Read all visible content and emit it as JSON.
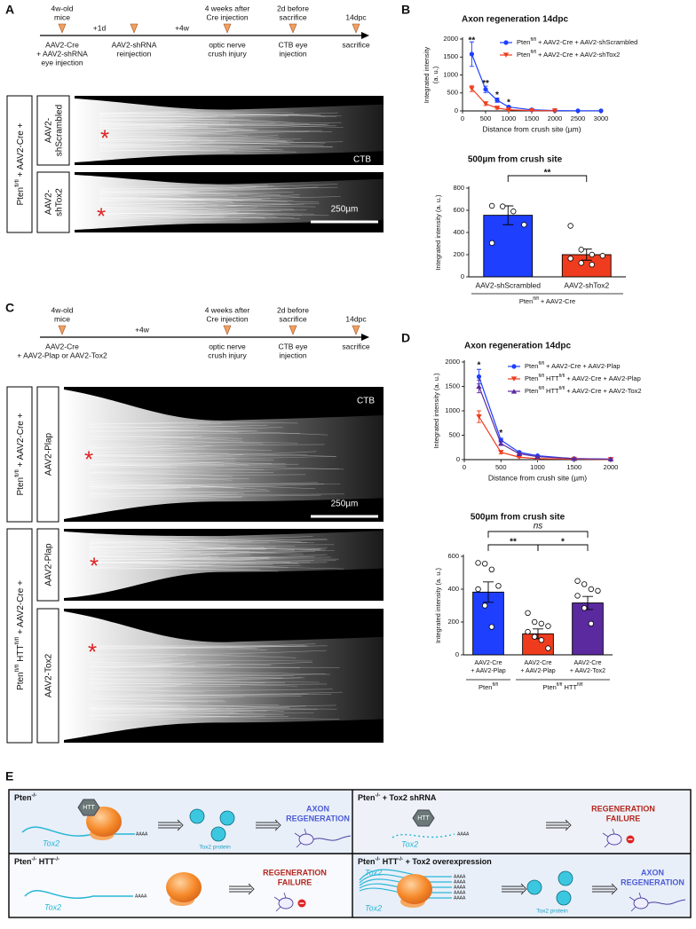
{
  "panels": {
    "a": "A",
    "b": "B",
    "c": "C",
    "d": "D",
    "e": "E"
  },
  "panel_a": {
    "timeline": {
      "markers": [
        {
          "above": [
            "4w-old",
            "mice"
          ],
          "below": [
            "AAV2-Cre",
            "+ AAV2-shRNA",
            "eye injection"
          ]
        },
        {
          "above": null,
          "below": [
            "AAV2-shRNA",
            "reinjection"
          ]
        },
        {
          "above": [
            "4 weeks after",
            "Cre injection"
          ],
          "below": [
            "optic nerve",
            "crush injury"
          ]
        },
        {
          "above": [
            "2d before",
            "sacrifice"
          ],
          "below": [
            "CTB eye",
            "injection"
          ]
        },
        {
          "above": [
            "14dpc"
          ],
          "below": [
            "sacrifice"
          ]
        }
      ],
      "intervals": [
        "+1d",
        "+4w"
      ]
    },
    "row_label": "Ptenfl/fl + AAV2-Cre +",
    "conditions": [
      [
        "AAV2-",
        "shScrambled"
      ],
      [
        "AAV2-",
        "shTox2"
      ]
    ],
    "crush_site_marker": "*",
    "stain": "CTB",
    "scale": "250µm"
  },
  "panel_c": {
    "timeline": {
      "markers": [
        {
          "above": [
            "4w-old",
            "mice"
          ],
          "below": [
            "AAV2-Cre",
            "+ AAV2-Plap or AAV2-Tox2"
          ]
        },
        {
          "above": [
            "4 weeks after",
            "Cre injection"
          ],
          "below": [
            "optic nerve",
            "crush injury"
          ]
        },
        {
          "above": [
            "2d before",
            "sacrifice"
          ],
          "below": [
            "CTB eye",
            "injection"
          ]
        },
        {
          "above": [
            "14dpc"
          ],
          "below": [
            "sacrifice"
          ]
        }
      ],
      "intervals": [
        "+4w"
      ]
    },
    "row_labels": [
      "Ptenfl/fl + AAV2-Cre +",
      "Ptenfl/fl HTTfl/fl + AAV2-Cre +"
    ],
    "conditions": [
      "AAV2-Plap",
      "AAV2-Plap",
      "AAV2-Tox2"
    ],
    "crush_site_marker": "*",
    "stain": "CTB",
    "scale": "250µm"
  },
  "chart_data": [
    {
      "type": "line",
      "title": "Axon regeneration 14dpc",
      "xlabel": "Distance from crush site (µm)",
      "ylabel": [
        "Integrated intensity",
        "(a. u.)"
      ],
      "x": [
        200,
        500,
        750,
        1000,
        1500,
        2000,
        2500,
        3000
      ],
      "xlim": [
        0,
        3000
      ],
      "xticks": [
        0,
        500,
        1000,
        1500,
        2000,
        2500,
        3000
      ],
      "ylim": [
        0,
        2000
      ],
      "yticks": [
        0,
        500,
        1000,
        1500,
        2000
      ],
      "series": [
        {
          "name": "Ptenfl/fl + AAV2-Cre + AAV2-shScrambled",
          "color": "#1f3fff",
          "marker": "circle",
          "values": [
            1580,
            600,
            300,
            110,
            30,
            10,
            5,
            5
          ],
          "errors": [
            340,
            90,
            60,
            30,
            10,
            5,
            5,
            5
          ]
        },
        {
          "name": "Ptenfl/fl + AAV2-Cre + AAV2-shTox2",
          "color": "#f03c1e",
          "marker": "triangle-down",
          "values": [
            620,
            200,
            80,
            30,
            10,
            5,
            null,
            null
          ],
          "errors": [
            80,
            50,
            30,
            15,
            5,
            5,
            null,
            null
          ]
        }
      ],
      "annotations": [
        {
          "x": 200,
          "y": 1960,
          "text": "**"
        },
        {
          "x": 500,
          "y": 760,
          "text": "**"
        },
        {
          "x": 750,
          "y": 440,
          "text": "*"
        },
        {
          "x": 1000,
          "y": 230,
          "text": "*"
        }
      ]
    },
    {
      "type": "bar",
      "title": "500µm from crush site",
      "ylabel": [
        "Integrated intensity (a. u.)"
      ],
      "categories": [
        "AAV2-shScrambled",
        "AAV2-shTox2"
      ],
      "values": [
        555,
        200
      ],
      "errors": [
        85,
        50
      ],
      "points": [
        [
          640,
          635,
          590,
          470,
          305
        ],
        [
          460,
          245,
          200,
          190,
          165,
          125,
          110
        ]
      ],
      "colors": [
        "#1f3fff",
        "#f03c1e"
      ],
      "ylim": [
        0,
        800
      ],
      "yticks": [
        0,
        200,
        400,
        600,
        800
      ],
      "significance": [
        "**"
      ],
      "group_labels": [
        "Ptenfl/fl + AAV2-Cre"
      ]
    },
    {
      "type": "line",
      "title": "Axon regeneration 14dpc",
      "xlabel": "Distance from crush site (µm)",
      "ylabel": [
        "Integrated intensity (a. u.)"
      ],
      "x": [
        200,
        500,
        750,
        1000,
        1500,
        2000
      ],
      "xlim": [
        0,
        2000
      ],
      "xticks": [
        0,
        500,
        1000,
        1500,
        2000
      ],
      "ylim": [
        0,
        2000
      ],
      "yticks": [
        0,
        500,
        1000,
        1500,
        2000
      ],
      "series": [
        {
          "name": "Ptenfl/fl + AAV2-Cre + AAV2-Plap",
          "color": "#1f3fff",
          "marker": "circle",
          "values": [
            1700,
            400,
            150,
            80,
            20,
            10
          ],
          "errors": [
            150,
            40,
            20,
            10,
            5,
            5
          ]
        },
        {
          "name": "Ptenfl/fl HTTfl/fl + AAV2-Cre + AAV2-Plap",
          "color": "#f03c1e",
          "marker": "triangle-down",
          "values": [
            880,
            150,
            50,
            20,
            10,
            5
          ],
          "errors": [
            120,
            30,
            10,
            5,
            5,
            5
          ]
        },
        {
          "name": "Ptenfl/fl HTTfl/fl + AAV2-Cre + AAV2-Tox2",
          "color": "#5b2a9e",
          "marker": "triangle-up",
          "values": [
            1500,
            330,
            120,
            60,
            20,
            10
          ],
          "errors": [
            130,
            40,
            20,
            10,
            5,
            5
          ]
        }
      ],
      "annotations": [
        {
          "x": 200,
          "y": 1930,
          "text": "*"
        },
        {
          "x": 500,
          "y": 540,
          "text": "*"
        }
      ]
    },
    {
      "type": "bar",
      "title": "500µm from crush site",
      "ylabel": [
        "Integrated intensity (a. u.)"
      ],
      "categories": [
        [
          "AAV2-Cre",
          "+ AAV2-Plap"
        ],
        [
          "AAV2-Cre",
          "+ AAV2-Plap"
        ],
        [
          "AAV2-Cre",
          "+ AAV2-Tox2"
        ]
      ],
      "values": [
        382,
        128,
        316
      ],
      "errors": [
        62,
        30,
        40
      ],
      "points": [
        [
          560,
          555,
          520,
          420,
          400,
          300,
          170
        ],
        [
          255,
          200,
          190,
          175,
          140,
          110,
          90,
          40
        ],
        [
          450,
          430,
          400,
          390,
          360,
          285,
          190
        ]
      ],
      "colors": [
        "#1f3fff",
        "#f03c1e",
        "#5b2a9e"
      ],
      "ylim": [
        0,
        600
      ],
      "yticks": [
        0,
        200,
        400,
        600
      ],
      "significance": [
        "ns",
        "**",
        "*"
      ],
      "group_labels": [
        "Ptenfl/fl",
        "Ptenfl/fl HTTfl/fl"
      ]
    }
  ],
  "panel_e": {
    "quadrants": [
      {
        "title": "Pten-/-",
        "htt": "HTT",
        "gene": "Tox2",
        "polya": "AAAA",
        "protein": "Tox2 protein",
        "outcome": [
          "AXON",
          "REGENERATION"
        ]
      },
      {
        "title": "Pten-/- + Tox2 shRNA",
        "htt": "HTT",
        "gene": "Tox2",
        "polya": "AAAA",
        "outcome": [
          "REGENERATION",
          "FAILURE"
        ]
      },
      {
        "title": "Pten-/- HTT-/-",
        "gene": "Tox2",
        "polya": "AAAA",
        "outcome": [
          "REGENERATION",
          "FAILURE"
        ]
      },
      {
        "title": "Pten-/- HTT-/- + Tox2 overexpression",
        "gene": "Tox2",
        "polya": "AAAA",
        "protein": "Tox2 protein",
        "outcome": [
          "AXON",
          "REGENERATION"
        ]
      }
    ]
  }
}
